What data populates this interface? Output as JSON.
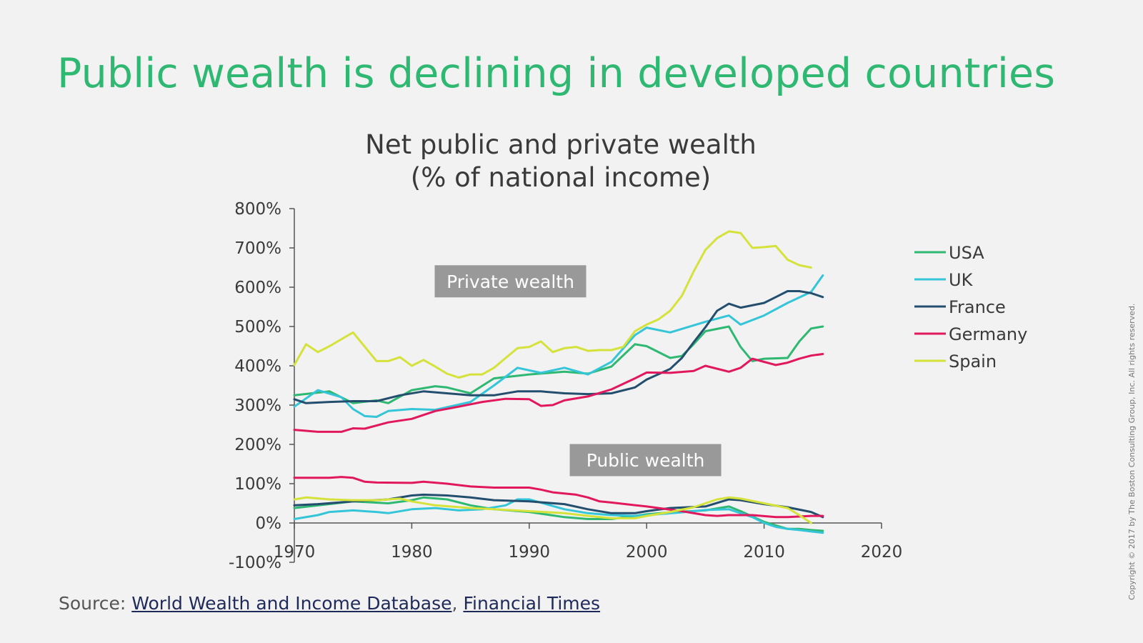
{
  "headline": "Public wealth is declining in developed countries",
  "source": {
    "prefix": "Source: ",
    "links": [
      "World Wealth and Income Database",
      "Financial Times"
    ],
    "separator": ", "
  },
  "copyright": "Copyright © 2017 by The Boston Consulting Group, Inc. All rights reserved.",
  "chart_data": {
    "type": "line",
    "title": [
      "Net public and private wealth",
      "(% of national income)"
    ],
    "xlabel": "",
    "ylabel": "",
    "xlim": [
      1970,
      2020
    ],
    "ylim": [
      -100,
      800
    ],
    "x_ticks": [
      1970,
      1980,
      1990,
      2000,
      2010,
      2020
    ],
    "y_ticks": [
      800,
      700,
      600,
      500,
      400,
      300,
      200,
      100,
      0,
      -100
    ],
    "y_tick_labels": [
      "800%",
      "700%",
      "600%",
      "500%",
      "400%",
      "300%",
      "200%",
      "100%",
      "0%",
      "-100%"
    ],
    "grid": false,
    "legend_position": "right",
    "annotations": [
      {
        "text": "Private wealth",
        "x": 1988.4,
        "y": 615
      },
      {
        "text": "Public wealth",
        "x": 1999.9,
        "y": 160
      }
    ],
    "colors": {
      "USA": "#2eb872",
      "UK": "#35c5d8",
      "France": "#234e6e",
      "Germany": "#e2185e",
      "Spain": "#d4e23a"
    },
    "legend": [
      "USA",
      "UK",
      "France",
      "Germany",
      "Spain"
    ],
    "private_wealth": [
      {
        "name": "USA",
        "x": [
          1970,
          1973,
          1975,
          1977,
          1978,
          1980,
          1982,
          1983,
          1985,
          1987,
          1990,
          1993,
          1995,
          1997,
          1999,
          2000,
          2002,
          2003,
          2004,
          2005,
          2007,
          2008,
          2009,
          2010,
          2012,
          2013,
          2014,
          2015
        ],
        "y": [
          325,
          335,
          305,
          312,
          305,
          338,
          348,
          345,
          330,
          368,
          378,
          385,
          380,
          398,
          455,
          450,
          420,
          425,
          455,
          488,
          500,
          448,
          412,
          418,
          420,
          462,
          495,
          500
        ]
      },
      {
        "name": "UK",
        "x": [
          1970,
          1972,
          1974,
          1975,
          1976,
          1977,
          1978,
          1980,
          1982,
          1985,
          1987,
          1989,
          1991,
          1993,
          1995,
          1997,
          1999,
          2000,
          2002,
          2005,
          2007,
          2008,
          2010,
          2012,
          2014,
          2015
        ],
        "y": [
          296,
          338,
          320,
          290,
          272,
          270,
          285,
          290,
          288,
          308,
          350,
          395,
          382,
          395,
          378,
          410,
          478,
          497,
          485,
          512,
          528,
          505,
          528,
          560,
          588,
          630
        ]
      },
      {
        "name": "France",
        "x": [
          1970,
          1971,
          1973,
          1975,
          1977,
          1979,
          1981,
          1983,
          1985,
          1987,
          1989,
          1991,
          1993,
          1995,
          1997,
          1999,
          2000,
          2002,
          2003,
          2004,
          2005,
          2006,
          2007,
          2008,
          2010,
          2011,
          2012,
          2013,
          2014,
          2015
        ],
        "y": [
          315,
          305,
          308,
          310,
          310,
          325,
          335,
          330,
          325,
          325,
          335,
          335,
          330,
          328,
          330,
          345,
          365,
          392,
          420,
          460,
          498,
          540,
          558,
          548,
          560,
          575,
          590,
          590,
          585,
          575
        ]
      },
      {
        "name": "Germany",
        "x": [
          1970,
          1972,
          1974,
          1975,
          1976,
          1978,
          1980,
          1982,
          1984,
          1986,
          1988,
          1990,
          1991,
          1992,
          1993,
          1995,
          1997,
          1999,
          2000,
          2002,
          2004,
          2005,
          2007,
          2008,
          2009,
          2010,
          2011,
          2012,
          2013,
          2014,
          2015
        ],
        "y": [
          237,
          232,
          232,
          241,
          240,
          256,
          265,
          285,
          296,
          308,
          316,
          315,
          298,
          300,
          312,
          322,
          340,
          368,
          383,
          382,
          387,
          400,
          385,
          395,
          418,
          410,
          402,
          408,
          418,
          426,
          430
        ]
      },
      {
        "name": "Spain",
        "x": [
          1970,
          1971,
          1972,
          1973,
          1975,
          1977,
          1978,
          1979,
          1980,
          1981,
          1982,
          1983,
          1984,
          1985,
          1986,
          1987,
          1988,
          1989,
          1990,
          1991,
          1992,
          1993,
          1994,
          1995,
          1996,
          1997,
          1998,
          1999,
          2000,
          2001,
          2002,
          2003,
          2004,
          2005,
          2006,
          2007,
          2008,
          2009,
          2010,
          2011,
          2012,
          2013,
          2014
        ],
        "y": [
          402,
          455,
          435,
          450,
          485,
          412,
          412,
          422,
          400,
          415,
          398,
          380,
          370,
          378,
          378,
          395,
          420,
          445,
          448,
          462,
          435,
          445,
          448,
          438,
          440,
          440,
          448,
          488,
          505,
          518,
          540,
          578,
          640,
          695,
          725,
          742,
          738,
          700,
          702,
          705,
          670,
          656,
          650
        ]
      }
    ],
    "public_wealth": [
      {
        "name": "USA",
        "x": [
          1970,
          1975,
          1978,
          1980,
          1981,
          1983,
          1985,
          1987,
          1990,
          1993,
          1995,
          1997,
          1999,
          2000,
          2002,
          2005,
          2007,
          2008,
          2010,
          2012,
          2013,
          2014,
          2015
        ],
        "y": [
          38,
          55,
          50,
          58,
          65,
          60,
          45,
          35,
          28,
          15,
          10,
          10,
          18,
          22,
          27,
          32,
          42,
          30,
          3,
          -15,
          -15,
          -18,
          -20
        ]
      },
      {
        "name": "UK",
        "x": [
          1970,
          1972,
          1973,
          1975,
          1977,
          1978,
          1980,
          1982,
          1984,
          1986,
          1988,
          1989,
          1990,
          1993,
          1995,
          1997,
          1999,
          2000,
          2003,
          2005,
          2007,
          2008,
          2009,
          2010,
          2011,
          2012,
          2013,
          2015
        ],
        "y": [
          10,
          20,
          28,
          32,
          28,
          25,
          35,
          38,
          32,
          35,
          45,
          60,
          60,
          35,
          25,
          20,
          18,
          20,
          27,
          33,
          35,
          25,
          15,
          0,
          -10,
          -15,
          -18,
          -25
        ]
      },
      {
        "name": "France",
        "x": [
          1970,
          1972,
          1975,
          1978,
          1980,
          1981,
          1983,
          1985,
          1987,
          1990,
          1993,
          1995,
          1997,
          1999,
          2000,
          2002,
          2005,
          2007,
          2008,
          2010,
          2012,
          2014,
          2015
        ],
        "y": [
          45,
          48,
          55,
          60,
          70,
          72,
          70,
          65,
          58,
          55,
          48,
          35,
          25,
          25,
          30,
          38,
          42,
          60,
          58,
          48,
          40,
          28,
          15
        ]
      },
      {
        "name": "Germany",
        "x": [
          1970,
          1973,
          1974,
          1975,
          1976,
          1977,
          1980,
          1981,
          1983,
          1985,
          1987,
          1990,
          1991,
          1992,
          1994,
          1995,
          1996,
          1997,
          2000,
          2003,
          2005,
          2006,
          2007,
          2009,
          2011,
          2012,
          2014,
          2015
        ],
        "y": [
          115,
          115,
          117,
          115,
          105,
          103,
          102,
          105,
          100,
          93,
          90,
          90,
          85,
          78,
          72,
          65,
          55,
          52,
          42,
          30,
          20,
          18,
          20,
          20,
          15,
          15,
          18,
          18
        ]
      },
      {
        "name": "Spain",
        "x": [
          1970,
          1971,
          1973,
          1975,
          1977,
          1979,
          1980,
          1982,
          1985,
          1987,
          1990,
          1993,
          1995,
          1997,
          1999,
          2000,
          2002,
          2004,
          2006,
          2007,
          2008,
          2010,
          2012,
          2013,
          2014
        ],
        "y": [
          60,
          65,
          60,
          58,
          58,
          62,
          55,
          45,
          38,
          35,
          30,
          25,
          18,
          12,
          12,
          18,
          28,
          40,
          60,
          65,
          62,
          50,
          38,
          20,
          0
        ]
      }
    ]
  }
}
